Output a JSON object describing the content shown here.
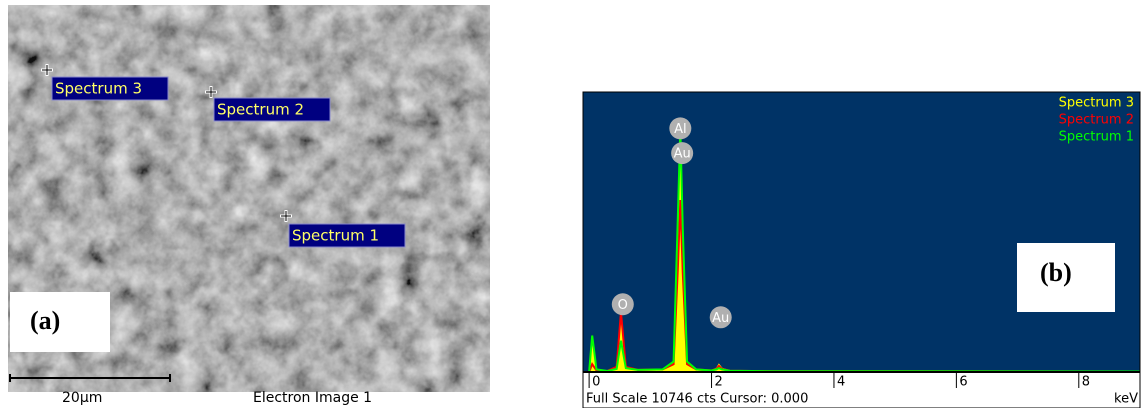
{
  "image_panel": {
    "label": "(a)",
    "markers": [
      {
        "label": "Spectrum 3"
      },
      {
        "label": "Spectrum 2"
      },
      {
        "label": "Spectrum 1"
      }
    ],
    "scale_bar_label": "20µm",
    "caption": "Electron Image 1"
  },
  "chart_data": {
    "type": "area",
    "panel_label": "(b)",
    "footer": "Full Scale 10746 cts Cursor: 0.000",
    "x_unit": "keV",
    "x": [
      0,
      0.05,
      0.12,
      0.3,
      0.45,
      0.52,
      0.6,
      0.8,
      1.2,
      1.38,
      1.45,
      1.49,
      1.53,
      1.6,
      1.75,
      2.0,
      2.08,
      2.12,
      2.17,
      2.3,
      3.0,
      9.0
    ],
    "series": [
      {
        "name": "Spectrum 3",
        "color": "#ffff00",
        "filled": true,
        "values": [
          0,
          1230,
          100,
          50,
          150,
          2000,
          200,
          80,
          100,
          400,
          5000,
          8500,
          5000,
          400,
          100,
          60,
          150,
          300,
          150,
          50,
          30,
          20
        ]
      },
      {
        "name": "Spectrum 2",
        "color": "#ff0000",
        "filled": false,
        "values": [
          0,
          300,
          60,
          40,
          200,
          2300,
          200,
          80,
          100,
          300,
          4000,
          6600,
          3800,
          300,
          100,
          60,
          120,
          230,
          120,
          50,
          30,
          20
        ]
      },
      {
        "name": "Spectrum 1",
        "color": "#00ff00",
        "filled": false,
        "values": [
          0,
          1400,
          100,
          40,
          120,
          1200,
          150,
          80,
          100,
          400,
          6000,
          9360,
          5500,
          400,
          100,
          60,
          100,
          150,
          100,
          50,
          30,
          20
        ]
      }
    ],
    "peak_labels": [
      {
        "label": "Al",
        "x": 1.49,
        "y": 9350
      },
      {
        "label": "Au",
        "x": 1.52,
        "y": 8400
      },
      {
        "label": "O",
        "x": 0.55,
        "y": 2600
      },
      {
        "label": "Au",
        "x": 2.15,
        "y": 2100
      }
    ],
    "xlim": [
      -0.1,
      9.0
    ],
    "ylim": [
      0,
      10746
    ],
    "xticks": [
      0,
      2,
      4,
      6,
      8
    ],
    "background": "#003366"
  }
}
